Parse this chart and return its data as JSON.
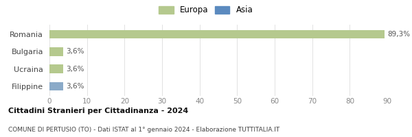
{
  "categories": [
    "Romania",
    "Bulgaria",
    "Ucraina",
    "Filippine"
  ],
  "values": [
    89.3,
    3.6,
    3.6,
    3.6
  ],
  "labels": [
    "89,3%",
    "3,6%",
    "3,6%",
    "3,6%"
  ],
  "bar_colors": [
    "#b5c98e",
    "#b5c98e",
    "#b5c98e",
    "#8baac8"
  ],
  "legend_items": [
    {
      "label": "Europa",
      "color": "#b5c98e"
    },
    {
      "label": "Asia",
      "color": "#5b8abf"
    }
  ],
  "xlim": [
    0,
    90
  ],
  "xticks": [
    0,
    10,
    20,
    30,
    40,
    50,
    60,
    70,
    80,
    90
  ],
  "title_bold": "Cittadini Stranieri per Cittadinanza - 2024",
  "subtitle": "COMUNE DI PERTUSIO (TO) - Dati ISTAT al 1° gennaio 2024 - Elaborazione TUTTITALIA.IT",
  "background_color": "#ffffff",
  "bar_height": 0.5,
  "label_fontsize": 7.5,
  "legend_fontsize": 8.5,
  "tick_fontsize": 7.5,
  "ytick_fontsize": 8
}
